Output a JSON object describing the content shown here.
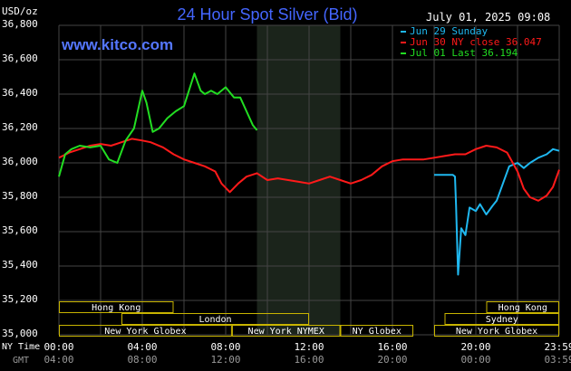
{
  "header": {
    "title": "24 Hour Spot Silver (Bid)",
    "units": "USD/oz",
    "datetime": "July 01, 2025 09:08",
    "website": "www.kitco.com"
  },
  "colors": {
    "background": "#000000",
    "title": "#4466ff",
    "sunday": "#1fb8f0",
    "ny_close": "#ff1a1a",
    "last": "#22dd22",
    "session_box": "#c8b400",
    "grid": "#444444"
  },
  "legend": [
    {
      "label": "Jun 29 Sunday",
      "color": "#1fb8f0"
    },
    {
      "label": "Jun 30 NY close 36.047",
      "color": "#ff1a1a"
    },
    {
      "label": "Jul 01 Last 36.194",
      "color": "#22dd22"
    }
  ],
  "timezones": {
    "primary_label": "NY Time",
    "secondary_label": "GMT"
  },
  "chart_data": {
    "type": "line",
    "title": "24 Hour Spot Silver (Bid)",
    "ylabel": "USD/oz",
    "ylim": [
      35.0,
      36.8
    ],
    "yticks": [
      "36,800",
      "36,600",
      "36,400",
      "36,200",
      "36,000",
      "35,800",
      "35,600",
      "35,400",
      "35,200",
      "35,000"
    ],
    "ytick_values": [
      36.8,
      36.6,
      36.4,
      36.2,
      36.0,
      35.8,
      35.6,
      35.4,
      35.2,
      35.0
    ],
    "xlim": [
      0,
      24
    ],
    "xticks": [
      0,
      4,
      8,
      12,
      16,
      20,
      24
    ],
    "xtick_labels_ny": [
      "00:00",
      "04:00",
      "08:00",
      "12:00",
      "16:00",
      "20:00",
      "23:59"
    ],
    "xtick_labels_gmt": [
      "04:00",
      "08:00",
      "12:00",
      "16:00",
      "20:00",
      "00:00",
      "03:59"
    ],
    "shaded_range_hours": [
      9.5,
      13.5
    ],
    "grid": true,
    "legend_position": "top-right",
    "series": [
      {
        "name": "Jun 29 Sunday",
        "color": "#1fb8f0",
        "x": [
          18.0,
          18.9,
          19.0,
          19.05,
          19.15,
          19.3,
          19.5,
          19.7,
          20.0,
          20.2,
          20.5,
          20.8,
          21.0,
          21.3,
          21.6,
          22.0,
          22.3,
          22.6,
          23.0,
          23.4,
          23.7,
          24.0
        ],
        "y": [
          35.93,
          35.93,
          35.92,
          35.75,
          35.35,
          35.62,
          35.58,
          35.74,
          35.72,
          35.76,
          35.7,
          35.75,
          35.78,
          35.88,
          35.98,
          36.0,
          35.97,
          36.0,
          36.03,
          36.05,
          36.08,
          36.07
        ]
      },
      {
        "name": "Jun 30 NY close 36.047",
        "color": "#ff1a1a",
        "x": [
          0.0,
          0.5,
          1.0,
          1.5,
          2.0,
          2.5,
          3.0,
          3.5,
          4.0,
          4.4,
          5.0,
          5.5,
          6.0,
          6.5,
          7.0,
          7.5,
          7.8,
          8.2,
          8.6,
          9.0,
          9.5,
          10.0,
          10.5,
          11.0,
          11.5,
          12.0,
          12.5,
          13.0,
          13.5,
          14.0,
          14.5,
          15.0,
          15.5,
          16.0,
          16.5,
          17.0,
          17.5,
          18.0,
          18.5,
          19.0,
          19.5,
          20.0,
          20.5,
          21.0,
          21.5,
          22.0,
          22.3,
          22.6,
          23.0,
          23.4,
          23.7,
          24.0
        ],
        "y": [
          36.03,
          36.06,
          36.08,
          36.1,
          36.11,
          36.1,
          36.12,
          36.14,
          36.13,
          36.12,
          36.09,
          36.05,
          36.02,
          36.0,
          35.98,
          35.95,
          35.88,
          35.83,
          35.88,
          35.92,
          35.94,
          35.9,
          35.91,
          35.9,
          35.89,
          35.88,
          35.9,
          35.92,
          35.9,
          35.88,
          35.9,
          35.93,
          35.98,
          36.01,
          36.02,
          36.02,
          36.02,
          36.03,
          36.04,
          36.05,
          36.05,
          36.08,
          36.1,
          36.09,
          36.06,
          35.95,
          35.85,
          35.8,
          35.78,
          35.81,
          35.86,
          35.96
        ]
      },
      {
        "name": "Jul 01 Last 36.194",
        "color": "#22dd22",
        "x": [
          0.0,
          0.3,
          0.6,
          1.0,
          1.5,
          2.0,
          2.4,
          2.8,
          3.2,
          3.6,
          4.0,
          4.2,
          4.5,
          4.8,
          5.2,
          5.6,
          6.0,
          6.5,
          6.8,
          7.0,
          7.3,
          7.6,
          8.0,
          8.4,
          8.7,
          9.0,
          9.3,
          9.5
        ],
        "y": [
          35.92,
          36.05,
          36.08,
          36.1,
          36.09,
          36.1,
          36.02,
          36.0,
          36.13,
          36.2,
          36.42,
          36.35,
          36.18,
          36.2,
          36.26,
          36.3,
          36.33,
          36.52,
          36.42,
          36.4,
          36.42,
          36.4,
          36.44,
          36.38,
          36.38,
          36.3,
          36.22,
          36.19
        ]
      }
    ]
  },
  "sessions": [
    {
      "label": "Hong Kong",
      "start": 0,
      "end": 5.5,
      "row": 0
    },
    {
      "label": "Hong Kong",
      "start": 20.5,
      "end": 24,
      "row": 0
    },
    {
      "label": "London",
      "start": 3.0,
      "end": 12.0,
      "row": 1
    },
    {
      "label": "Sydney",
      "start": 18.5,
      "end": 24,
      "row": 1
    },
    {
      "label": "New York Globex",
      "start": 0,
      "end": 8.3,
      "row": 2
    },
    {
      "label": "New York NYMEX",
      "start": 8.3,
      "end": 13.5,
      "row": 2
    },
    {
      "label": "NY Globex",
      "start": 13.5,
      "end": 17.0,
      "row": 2
    },
    {
      "label": "New York Globex",
      "start": 18.0,
      "end": 24,
      "row": 2
    }
  ]
}
